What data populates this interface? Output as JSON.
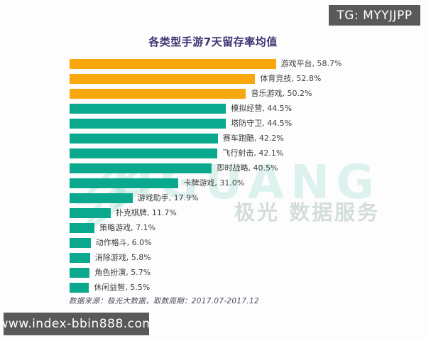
{
  "colors": {
    "orange": "#F8A80C",
    "teal": "#0AA98D",
    "title_text": "#3C3472",
    "badge_bg": "#595959",
    "badge_text": "#FFFFFF",
    "watermark_teal": "#0BAA8D"
  },
  "overlays": {
    "tg_badge": "TG: MYYJJPP",
    "site_badge": "www.index-bbin888.com"
  },
  "chart": {
    "title": "各类型手游7天留存率均值",
    "source_note": "数据来源：极光大数据，取数周期：2017.07-2017.12",
    "watermark_brand": "JIGUANG",
    "watermark_caption": "极光 数据服务"
  },
  "chart_data": {
    "type": "bar",
    "orientation": "horizontal",
    "title": "各类型手游7天留存率均值",
    "xlabel": "",
    "ylabel": "",
    "unit": "%",
    "xlim": [
      0,
      60
    ],
    "grid": false,
    "legend": "none",
    "categories": [
      "游戏平台",
      "体育竞技",
      "音乐游戏",
      "模拟经营",
      "塔防守卫",
      "赛车跑酷",
      "飞行射击",
      "即时战略",
      "卡牌游戏",
      "游戏助手",
      "扑克棋牌",
      "策略游戏",
      "动作格斗",
      "消除游戏",
      "角色扮演",
      "休闲益智"
    ],
    "values": [
      58.7,
      52.8,
      50.2,
      44.5,
      44.5,
      42.2,
      42.1,
      40.5,
      31.0,
      17.9,
      11.7,
      7.1,
      6.0,
      5.8,
      5.7,
      5.5
    ],
    "labels": [
      "游戏平台, 58.7%",
      "体育竞技, 52.8%",
      "音乐游戏, 50.2%",
      "模拟经营, 44.5%",
      "塔防守卫, 44.5%",
      "赛车跑酷, 42.2%",
      "飞行射击, 42.1%",
      "即时战略, 40.5%",
      "卡牌游戏, 31.0%",
      "游戏助手, 17.9%",
      "扑克棋牌, 11.7%",
      "策略游戏, 7.1%",
      "动作格斗, 6.0%",
      "消除游戏, 5.8%",
      "角色扮演, 5.7%",
      "休闲益智, 5.5%"
    ],
    "bar_colors": [
      "orange",
      "orange",
      "orange",
      "teal",
      "teal",
      "teal",
      "teal",
      "teal",
      "teal",
      "teal",
      "teal",
      "teal",
      "teal",
      "teal",
      "teal",
      "teal"
    ]
  }
}
